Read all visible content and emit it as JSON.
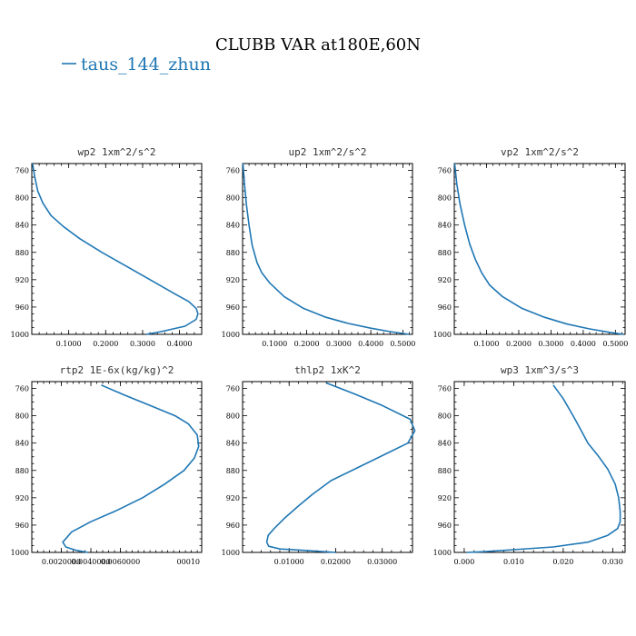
{
  "title": "CLUBB VAR at180E,60N",
  "legend": {
    "label": "taus_144_zhun",
    "color": "#1f77b4"
  },
  "chart_data": [
    {
      "type": "line",
      "title": "wp2  1xm^2/s^2",
      "ylim": [
        1000,
        750
      ],
      "xlim": [
        0.0,
        0.46
      ],
      "yticks": [
        760,
        800,
        840,
        880,
        920,
        960,
        1000
      ],
      "xticks": [
        0.1,
        0.2,
        0.3,
        0.4
      ],
      "xtick_labels": [
        "0.1000",
        "0.2000",
        "0.3000",
        "0.4000"
      ],
      "series": [
        {
          "color": "#1f77b4",
          "x": [
            0.002,
            0.008,
            0.016,
            0.03,
            0.052,
            0.085,
            0.13,
            0.19,
            0.255,
            0.32,
            0.385,
            0.425,
            0.445,
            0.45,
            0.445,
            0.415,
            0.35,
            0.31
          ],
          "y": [
            750,
            770,
            790,
            808,
            826,
            842,
            860,
            880,
            900,
            920,
            940,
            952,
            962,
            970,
            978,
            988,
            996,
            1000
          ]
        }
      ]
    },
    {
      "type": "line",
      "title": "up2  1xm^2/s^2",
      "ylim": [
        1000,
        750
      ],
      "xlim": [
        0.0,
        0.53
      ],
      "yticks": [
        760,
        800,
        840,
        880,
        920,
        960,
        1000
      ],
      "xticks": [
        0.1,
        0.2,
        0.3,
        0.4,
        0.5
      ],
      "xtick_labels": [
        "0.1000",
        "0.2000",
        "0.3000",
        "0.4000",
        "0.5000"
      ],
      "series": [
        {
          "color": "#1f77b4",
          "x": [
            0.001,
            0.006,
            0.012,
            0.02,
            0.03,
            0.045,
            0.06,
            0.085,
            0.13,
            0.19,
            0.26,
            0.33,
            0.4,
            0.46,
            0.52
          ],
          "y": [
            750,
            780,
            810,
            840,
            870,
            895,
            910,
            925,
            945,
            962,
            975,
            984,
            991,
            996,
            1000
          ]
        }
      ]
    },
    {
      "type": "line",
      "title": "vp2  1xm^2/s^2",
      "ylim": [
        1000,
        750
      ],
      "xlim": [
        0.0,
        0.53
      ],
      "yticks": [
        760,
        800,
        840,
        880,
        920,
        960,
        1000
      ],
      "xticks": [
        0.1,
        0.2,
        0.3,
        0.4,
        0.5
      ],
      "xtick_labels": [
        "0.1000",
        "0.2000",
        "0.3000",
        "0.4000",
        "0.5000"
      ],
      "series": [
        {
          "color": "#1f77b4",
          "x": [
            0.001,
            0.008,
            0.018,
            0.032,
            0.048,
            0.065,
            0.085,
            0.11,
            0.15,
            0.21,
            0.28,
            0.35,
            0.42,
            0.48,
            0.525
          ],
          "y": [
            750,
            780,
            810,
            840,
            868,
            890,
            910,
            928,
            945,
            962,
            975,
            985,
            992,
            997,
            1000
          ]
        }
      ]
    },
    {
      "type": "line",
      "title": "rtp2  1E-6x(kg/kg)^2",
      "ylim": [
        1000,
        750
      ],
      "xlim": [
        0.0,
        0.0115
      ],
      "yticks": [
        760,
        800,
        840,
        880,
        920,
        960,
        1000
      ],
      "xticks": [
        0.002,
        0.004,
        0.006
      ],
      "xtick_labels": [
        "0.0020000",
        "0.0040000",
        "0.0060000"
      ],
      "tick_suffix": "00010",
      "series": [
        {
          "color": "#1f77b4",
          "x": [
            0.0047,
            0.0063,
            0.008,
            0.0097,
            0.0106,
            0.0112,
            0.0113,
            0.011,
            0.0103,
            0.009,
            0.0075,
            0.0056,
            0.004,
            0.0027,
            0.0021,
            0.0023,
            0.003,
            0.0038
          ],
          "y": [
            755,
            770,
            785,
            800,
            812,
            828,
            845,
            862,
            880,
            900,
            920,
            940,
            955,
            970,
            985,
            992,
            997,
            1000
          ]
        }
      ]
    },
    {
      "type": "line",
      "title": "thlp2  1xK^2",
      "ylim": [
        1000,
        750
      ],
      "xlim": [
        0.0,
        0.0365
      ],
      "yticks": [
        760,
        800,
        840,
        880,
        920,
        960,
        1000
      ],
      "xticks": [
        0.01,
        0.02,
        0.03
      ],
      "xtick_labels": [
        "0.01000",
        "0.02000",
        "0.03000"
      ],
      "series": [
        {
          "color": "#1f77b4",
          "x": [
            0.018,
            0.024,
            0.03,
            0.036,
            0.037,
            0.0355,
            0.031,
            0.025,
            0.019,
            0.015,
            0.012,
            0.009,
            0.0068,
            0.0055,
            0.0052,
            0.0056,
            0.008,
            0.013,
            0.02
          ],
          "y": [
            752,
            768,
            785,
            805,
            822,
            840,
            855,
            875,
            895,
            915,
            932,
            950,
            965,
            975,
            985,
            991,
            995,
            997,
            1000
          ]
        }
      ]
    },
    {
      "type": "line",
      "title": "wp3  1xm^3/s^3",
      "ylim": [
        1000,
        750
      ],
      "xlim": [
        -0.002,
        0.0325
      ],
      "yticks": [
        760,
        800,
        840,
        880,
        920,
        960,
        1000
      ],
      "xticks": [
        0.0,
        0.01,
        0.02,
        0.03
      ],
      "xtick_labels": [
        "0.000",
        "0.010",
        "0.020",
        "0.030"
      ],
      "series": [
        {
          "color": "#1f77b4",
          "x": [
            0.018,
            0.02,
            0.022,
            0.0235,
            0.025,
            0.027,
            0.029,
            0.0305,
            0.0312,
            0.0315,
            0.0315,
            0.031,
            0.029,
            0.025,
            0.018,
            0.01,
            0.004,
            0.0005
          ],
          "y": [
            755,
            775,
            800,
            820,
            840,
            858,
            878,
            900,
            920,
            940,
            955,
            965,
            975,
            985,
            992,
            996,
            999,
            1000
          ]
        }
      ]
    }
  ]
}
